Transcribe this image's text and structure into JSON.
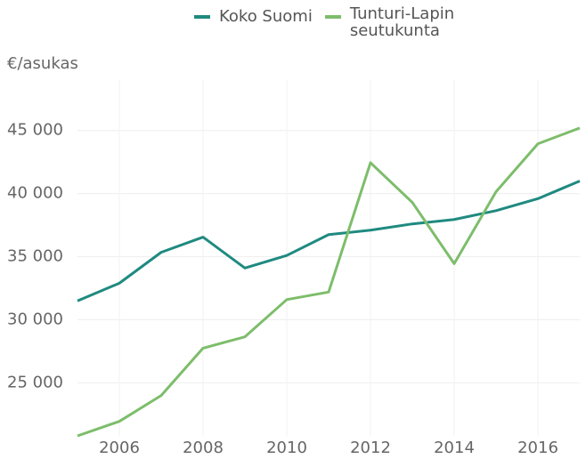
{
  "chart_data": {
    "type": "line",
    "y_label": "€/asukas",
    "x": [
      2005,
      2006,
      2007,
      2008,
      2009,
      2010,
      2011,
      2012,
      2013,
      2014,
      2015,
      2016,
      2017
    ],
    "series": [
      {
        "name": "Koko Suomi",
        "color": "#1f8a80",
        "values": [
          31500,
          32900,
          35350,
          36550,
          34100,
          35100,
          36750,
          37100,
          37600,
          37950,
          38650,
          39600,
          41000
        ]
      },
      {
        "name": "Tunturi-Lapin seutukunta",
        "color": "#7dbd6b",
        "values": [
          20800,
          21950,
          24000,
          27750,
          28650,
          31600,
          32200,
          42450,
          39300,
          34450,
          40150,
          43950,
          45200
        ]
      }
    ],
    "xlim": [
      2005,
      2017
    ],
    "xticks": [
      2006,
      2008,
      2010,
      2012,
      2014,
      2016
    ],
    "ylim": [
      20800,
      49000
    ],
    "yticks": [
      {
        "value": 25000,
        "label": "25 000"
      },
      {
        "value": 30000,
        "label": "30 000"
      },
      {
        "value": 35000,
        "label": "35 000"
      },
      {
        "value": 40000,
        "label": "40 000"
      },
      {
        "value": 45000,
        "label": "45 000"
      }
    ],
    "grid": true
  }
}
